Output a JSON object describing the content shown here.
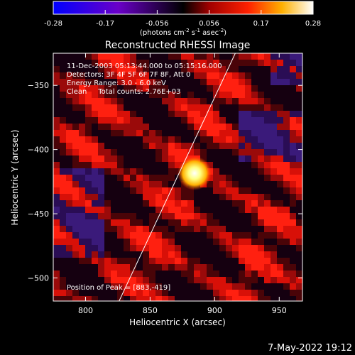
{
  "page": {
    "title": "Reconstructed RHESSI Image",
    "timestamp": "7-May-2022 19:12"
  },
  "colorbar": {
    "ticks": [
      "-0.28",
      "-0.17",
      "-0.056",
      "0.056",
      "0.17",
      "0.28"
    ],
    "unit_label": "(photons cm",
    "unit_exp1": "-2",
    "unit_mid": " s",
    "unit_exp2": "-1",
    "unit_tail": " asec",
    "unit_exp3": "-2",
    "unit_close": ")"
  },
  "info": {
    "line1": "11-Dec-2003 05:13:44.000 to 05:15:16.000",
    "line2": "Detectors: 3F 4F 5F 6F 7F 8F, Att 0",
    "line3": "Energy Range: 3.0 - 6.0 keV",
    "line4": "Clean     Total counts: 2.76E+03",
    "peak": "Position of Peak = [883,-419]"
  },
  "chart_data": {
    "type": "heatmap",
    "title": "Reconstructed RHESSI Image",
    "xlabel": "Heliocentric X (arcsec)",
    "ylabel": "Heliocentric Y (arcsec)",
    "xlim": [
      775,
      968
    ],
    "ylim": [
      -518,
      -325
    ],
    "x_ticks": [
      800,
      850,
      900,
      950
    ],
    "y_ticks": [
      -350,
      -400,
      -450,
      -500
    ],
    "color_range": [
      -0.28,
      0.28
    ],
    "peak": {
      "x": 883,
      "y": -419
    },
    "limb_line": [
      {
        "x": 826,
        "y": -518
      },
      {
        "x": 916,
        "y": -325
      }
    ],
    "grid": false
  },
  "colors": {
    "background": "#000000",
    "foreground": "#ffffff"
  }
}
